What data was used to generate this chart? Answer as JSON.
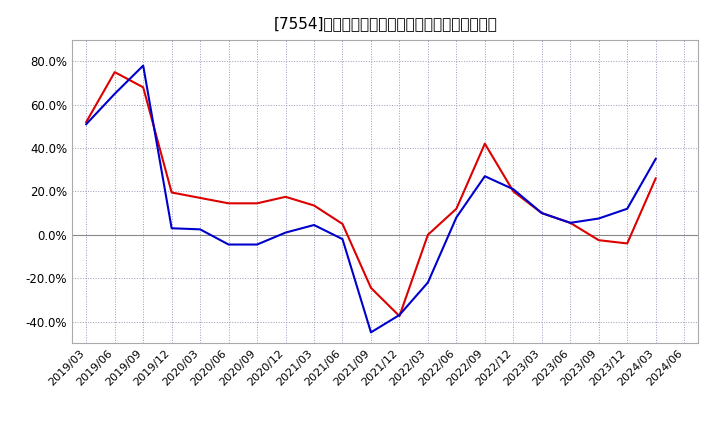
{
  "title": "[7554]　有利子負債キャッシュフロー比率の推移",
  "x_labels": [
    "2019/03",
    "2019/06",
    "2019/09",
    "2019/12",
    "2020/03",
    "2020/06",
    "2020/09",
    "2020/12",
    "2021/03",
    "2021/06",
    "2021/09",
    "2021/12",
    "2022/03",
    "2022/06",
    "2022/09",
    "2022/12",
    "2023/03",
    "2023/06",
    "2023/09",
    "2023/12",
    "2024/03",
    "2024/06"
  ],
  "red_values": [
    52.0,
    75.0,
    68.0,
    19.5,
    17.0,
    14.5,
    14.5,
    17.5,
    13.5,
    5.0,
    -24.5,
    -37.5,
    0.0,
    12.0,
    42.0,
    20.0,
    10.0,
    5.5,
    -2.5,
    -4.0,
    26.0,
    null
  ],
  "blue_values": [
    51.0,
    65.0,
    78.0,
    3.0,
    2.5,
    -4.5,
    -4.5,
    1.0,
    4.5,
    -2.0,
    -45.0,
    -37.0,
    -22.0,
    8.0,
    27.0,
    21.0,
    10.0,
    5.5,
    7.5,
    12.0,
    35.0,
    null
  ],
  "red_color": "#dd0000",
  "blue_color": "#0000cc",
  "ylim": [
    -50,
    90
  ],
  "yticks": [
    -40.0,
    -20.0,
    0.0,
    20.0,
    40.0,
    60.0,
    80.0
  ],
  "bg_color": "#ffffff",
  "plot_bg_color": "#ffffff",
  "grid_color": "#9999bb",
  "zero_line_color": "#888888",
  "title_fontsize": 11,
  "tick_fontsize": 8,
  "legend_fontsize": 9
}
